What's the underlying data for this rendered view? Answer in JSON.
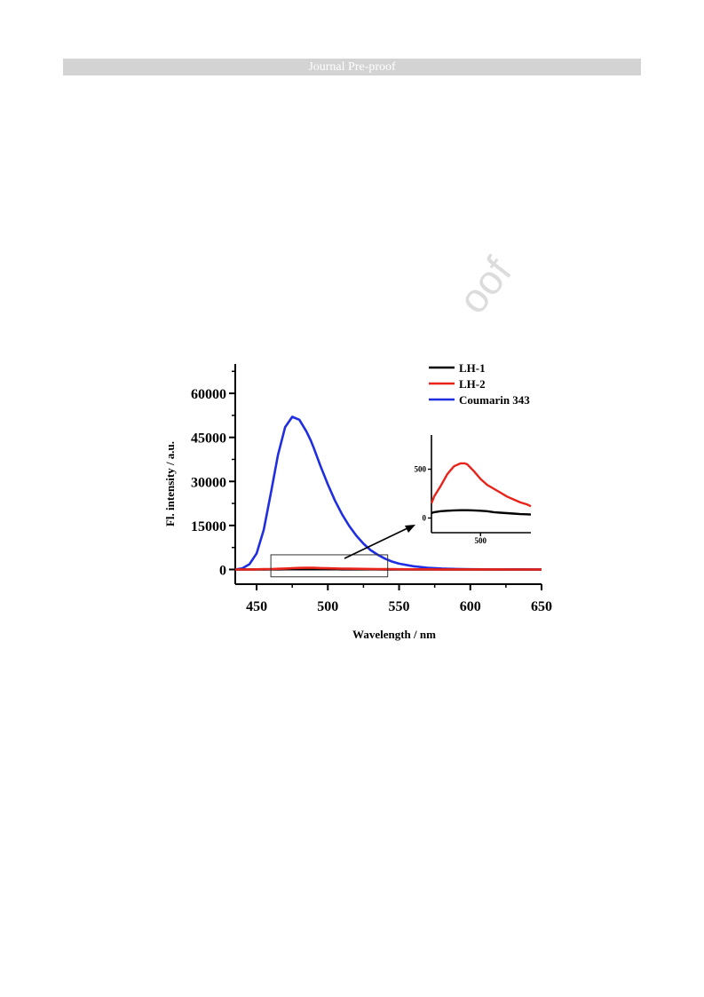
{
  "page": {
    "header": "Journal Pre-proof",
    "watermark": "oof"
  },
  "chart_data": [
    {
      "type": "line",
      "title": "",
      "xlabel": "Wavelength / nm",
      "ylabel": "Fl. intensity / a.u.",
      "xlim": [
        435,
        650
      ],
      "ylim": [
        -5000,
        70000
      ],
      "x_ticks": [
        450,
        500,
        550,
        600,
        650
      ],
      "y_ticks": [
        0,
        15000,
        30000,
        45000,
        60000
      ],
      "legend_position": "top-right",
      "grid": false,
      "x": [
        435,
        440,
        445,
        450,
        455,
        460,
        465,
        470,
        475,
        480,
        485,
        488,
        490,
        495,
        500,
        505,
        510,
        515,
        520,
        525,
        530,
        535,
        540,
        545,
        550,
        560,
        570,
        580,
        590,
        600,
        610,
        620,
        630,
        640,
        650
      ],
      "series": [
        {
          "name": "LH-1",
          "color": "#000000",
          "values": [
            0,
            5,
            10,
            20,
            35,
            50,
            60,
            70,
            75,
            78,
            80,
            80,
            80,
            78,
            75,
            70,
            60,
            55,
            50,
            45,
            40,
            38,
            35,
            32,
            30,
            25,
            20,
            15,
            10,
            8,
            5,
            4,
            3,
            2,
            1
          ]
        },
        {
          "name": "LH-2",
          "color": "#e8231a",
          "values": [
            0,
            10,
            30,
            60,
            100,
            150,
            220,
            330,
            450,
            530,
            560,
            560,
            550,
            480,
            400,
            340,
            300,
            260,
            220,
            190,
            160,
            140,
            120,
            100,
            90,
            65,
            45,
            30,
            20,
            15,
            10,
            7,
            5,
            3,
            2
          ]
        },
        {
          "name": "Coumarin 343",
          "color": "#1f2ee0",
          "values": [
            0,
            400,
            1800,
            5500,
            13500,
            26000,
            39000,
            48500,
            52000,
            51000,
            47000,
            44000,
            41500,
            35000,
            29000,
            23500,
            18800,
            14800,
            11500,
            8800,
            6600,
            5000,
            3700,
            2700,
            2000,
            1100,
            600,
            320,
            170,
            90,
            50,
            25,
            12,
            6,
            3
          ]
        }
      ],
      "zoom_box": {
        "x_range": [
          460,
          542
        ],
        "y_range": [
          -2500,
          5000
        ]
      }
    },
    {
      "type": "line",
      "title": "",
      "role": "inset",
      "xlabel": "",
      "ylabel": "",
      "xlim": [
        463,
        538
      ],
      "ylim": [
        -150,
        850
      ],
      "x_ticks": [
        500
      ],
      "y_ticks": [
        0,
        500
      ],
      "grid": false,
      "series_ref": [
        "LH-1",
        "LH-2"
      ]
    }
  ]
}
